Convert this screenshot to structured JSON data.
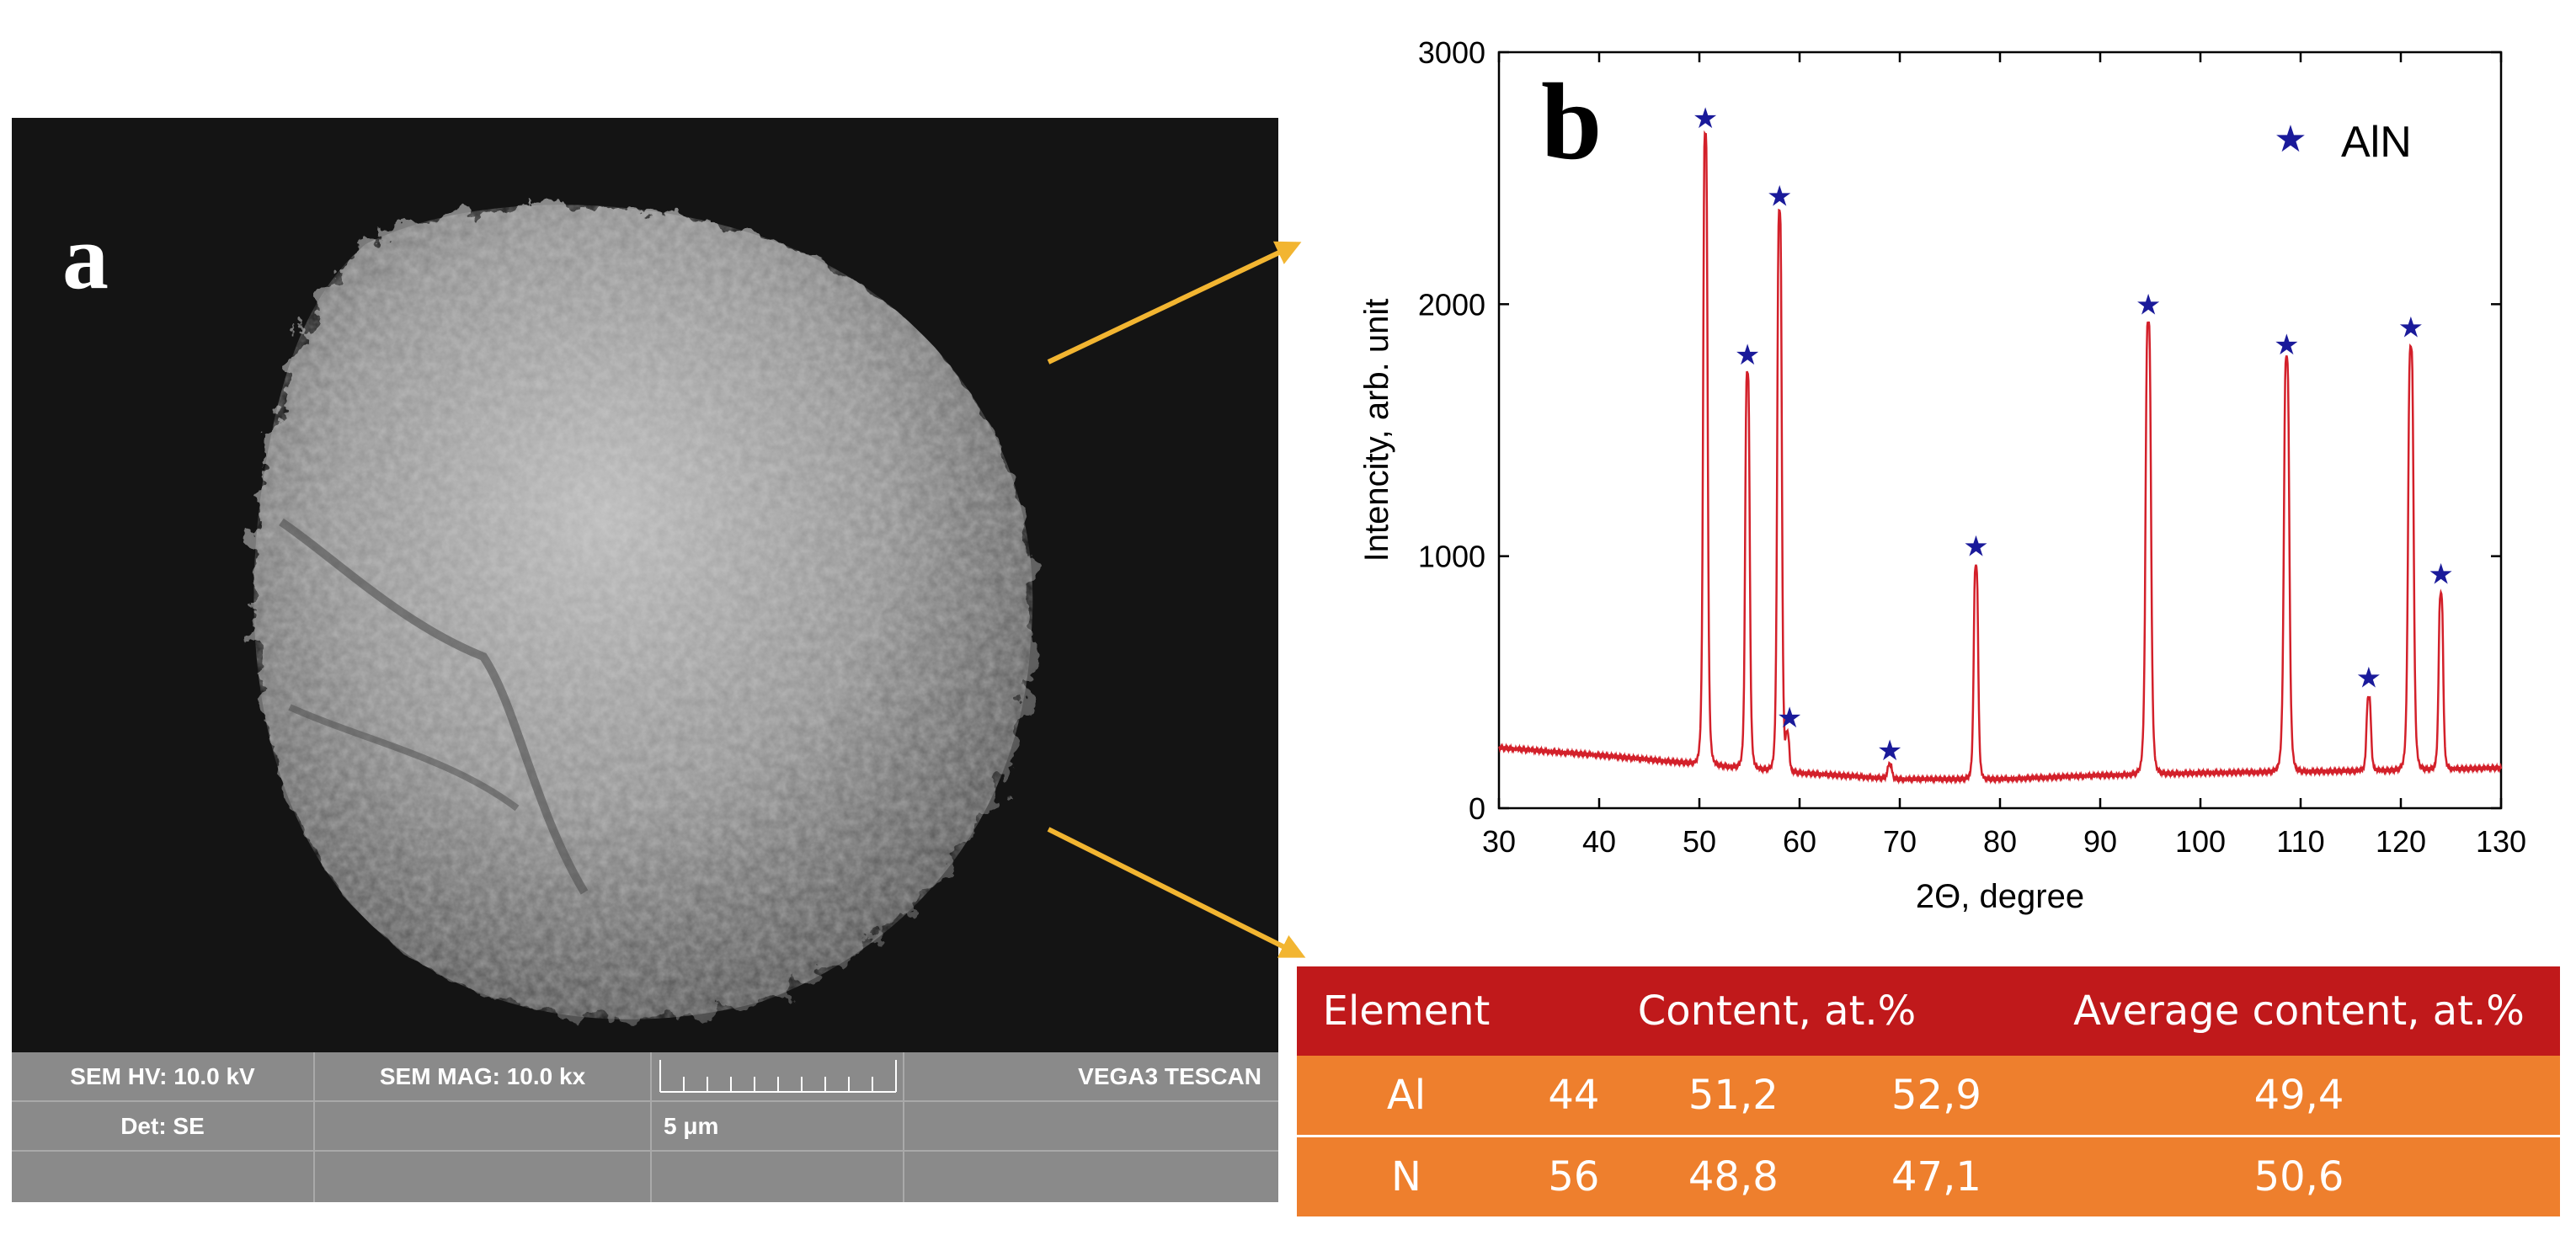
{
  "panel_a": {
    "label": "a",
    "databar": {
      "hv": "SEM HV: 10.0 kV",
      "mag": "SEM MAG: 10.0 kx",
      "det": "Det: SE",
      "scale": "5 μm",
      "instrument": "VEGA3 TESCAN"
    }
  },
  "panel_b": {
    "label": "b"
  },
  "colors": {
    "curve": "#d3202a",
    "marker": "#1a1a9a",
    "table_header": "#c0191b",
    "table_body": "#ee7f2d",
    "arrow": "#f2b531"
  },
  "chart_data": {
    "type": "line",
    "xlabel": "2Θ, degree",
    "ylabel": "Intencity, arb. unit",
    "xlim": [
      30,
      130
    ],
    "ylim": [
      0,
      3000
    ],
    "xticks": [
      30,
      40,
      50,
      60,
      70,
      80,
      90,
      100,
      110,
      120,
      130
    ],
    "yticks": [
      0,
      1000,
      2000,
      3000
    ],
    "grid": false,
    "legend": {
      "label": "AlN",
      "marker": "star",
      "position": "top-right"
    },
    "series": [
      {
        "background": [
          [
            30,
            240
          ],
          [
            40,
            210
          ],
          [
            50,
            175
          ],
          [
            60,
            140
          ],
          [
            70,
            115
          ],
          [
            80,
            115
          ],
          [
            90,
            130
          ],
          [
            100,
            140
          ],
          [
            110,
            145
          ],
          [
            120,
            150
          ],
          [
            130,
            160
          ]
        ],
        "peaks": [
          {
            "x": 50.6,
            "y": 2680,
            "width": 0.5
          },
          {
            "x": 54.8,
            "y": 1730,
            "width": 0.5
          },
          {
            "x": 58.0,
            "y": 2370,
            "width": 0.5
          },
          {
            "x": 58.8,
            "y": 280,
            "width": 0.4
          },
          {
            "x": 69.0,
            "y": 175,
            "width": 0.5
          },
          {
            "x": 77.6,
            "y": 960,
            "width": 0.5
          },
          {
            "x": 94.8,
            "y": 1930,
            "width": 0.6
          },
          {
            "x": 108.6,
            "y": 1790,
            "width": 0.6
          },
          {
            "x": 116.8,
            "y": 440,
            "width": 0.5
          },
          {
            "x": 121.0,
            "y": 1830,
            "width": 0.6
          },
          {
            "x": 124.0,
            "y": 850,
            "width": 0.5
          }
        ]
      }
    ],
    "star_markers": [
      {
        "x": 50.6,
        "y": 2740
      },
      {
        "x": 54.8,
        "y": 1800
      },
      {
        "x": 58.0,
        "y": 2430
      },
      {
        "x": 59.0,
        "y": 360
      },
      {
        "x": 69.0,
        "y": 230
      },
      {
        "x": 77.6,
        "y": 1040
      },
      {
        "x": 94.8,
        "y": 2000
      },
      {
        "x": 108.6,
        "y": 1840
      },
      {
        "x": 116.8,
        "y": 520
      },
      {
        "x": 121.0,
        "y": 1910
      },
      {
        "x": 124.0,
        "y": 930
      }
    ]
  },
  "table": {
    "headers": [
      "Element",
      "Content, at.%",
      "Average content, at.%"
    ],
    "rows": [
      {
        "element": "Al",
        "values": [
          "44",
          "51,2",
          "52,9"
        ],
        "average": "49,4"
      },
      {
        "element": "N",
        "values": [
          "56",
          "48,8",
          "47,1"
        ],
        "average": "50,6"
      }
    ]
  }
}
